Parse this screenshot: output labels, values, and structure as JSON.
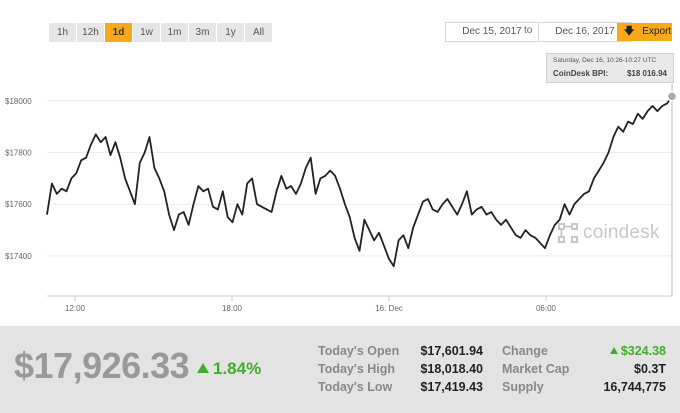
{
  "toolbar": {
    "ranges": [
      "1h",
      "12h",
      "1d",
      "1w",
      "1m",
      "3m",
      "1y",
      "All"
    ],
    "active_range": "1d",
    "from_date": "Dec 15, 2017",
    "to_label": "to",
    "to_date": "Dec 16, 2017",
    "export_label": "Export"
  },
  "tooltip": {
    "date": "Saturday, Dec 16, 10:26-10:27 UTC",
    "label": "CoinDesk BPI:",
    "value": "$18 016.94"
  },
  "watermark": {
    "text": "coindesk"
  },
  "chart_data": {
    "type": "line",
    "yticks": [
      {
        "value": 17400,
        "label": "$17400"
      },
      {
        "value": 17600,
        "label": "$17600"
      },
      {
        "value": 17800,
        "label": "$17800"
      },
      {
        "value": 18000,
        "label": "$18000"
      }
    ],
    "ylim": [
      17245,
      18150
    ],
    "xticks": [
      "12:00",
      "18:00",
      "16. Dec",
      "06:00"
    ],
    "x": [
      0,
      1,
      2,
      3,
      4,
      5,
      6,
      7,
      8,
      9,
      10,
      11,
      12,
      13,
      14,
      15,
      16,
      17,
      18,
      19,
      20,
      21,
      22,
      23,
      24,
      25,
      26,
      27,
      28,
      29,
      30,
      31,
      32,
      33,
      34,
      35,
      36,
      37,
      38,
      39,
      40,
      41,
      42,
      43,
      44,
      45,
      46,
      47,
      48,
      49,
      50,
      51,
      52,
      53,
      54,
      55,
      56,
      57,
      58,
      59,
      60,
      61,
      62,
      63,
      64,
      65,
      66,
      67,
      68,
      69,
      70,
      71,
      72,
      73,
      74,
      75,
      76,
      77,
      78,
      79,
      80,
      81,
      82,
      83,
      84,
      85,
      86,
      87,
      88,
      89,
      90,
      91,
      92,
      93,
      94,
      95,
      96,
      97,
      98,
      99,
      100,
      101,
      102,
      103,
      104,
      105,
      106,
      107,
      108,
      109,
      110,
      111,
      112,
      113,
      114,
      115,
      116,
      117,
      118,
      119,
      120,
      121,
      122,
      123,
      124,
      125,
      126,
      127,
      128
    ],
    "series": [
      {
        "values": [
          17560,
          17680,
          17640,
          17660,
          17650,
          17700,
          17720,
          17770,
          17780,
          17830,
          17870,
          17840,
          17860,
          17790,
          17840,
          17780,
          17700,
          17650,
          17600,
          17760,
          17800,
          17860,
          17740,
          17700,
          17650,
          17560,
          17500,
          17560,
          17570,
          17520,
          17600,
          17670,
          17650,
          17660,
          17590,
          17580,
          17650,
          17550,
          17530,
          17600,
          17560,
          17680,
          17700,
          17600,
          17590,
          17580,
          17570,
          17650,
          17710,
          17660,
          17670,
          17640,
          17680,
          17740,
          17780,
          17640,
          17700,
          17710,
          17730,
          17710,
          17660,
          17600,
          17550,
          17470,
          17420,
          17540,
          17500,
          17460,
          17490,
          17440,
          17390,
          17360,
          17460,
          17480,
          17430,
          17510,
          17560,
          17610,
          17620,
          17580,
          17570,
          17600,
          17620,
          17590,
          17560,
          17600,
          17650,
          17560,
          17580,
          17590,
          17560,
          17570,
          17540,
          17520,
          17540,
          17510,
          17480,
          17470,
          17500,
          17480,
          17470,
          17450,
          17430,
          17480,
          17520,
          17540,
          17600,
          17560,
          17600,
          17620,
          17640,
          17650,
          17700,
          17730,
          17760,
          17800,
          17860,
          17900,
          17880,
          17920,
          17910,
          17950,
          17930,
          17960,
          17980,
          17960,
          17980,
          17990,
          18017
        ]
      }
    ]
  },
  "summary": {
    "price": "$17,926.33",
    "change_pct": "1.84%",
    "open_label": "Today's Open",
    "open_value": "$17,601.94",
    "high_label": "Today's High",
    "high_value": "$18,018.40",
    "low_label": "Today's Low",
    "low_value": "$17,419.43",
    "change_label": "Change",
    "change_value": "$324.38",
    "mcap_label": "Market Cap",
    "mcap_value": "$0.3T",
    "supply_label": "Supply",
    "supply_value": "16,744,775"
  },
  "colors": {
    "accent": "#f7a81b",
    "line": "#222222",
    "positive": "#3fae2a",
    "footer_bg": "#e3e3e3"
  }
}
